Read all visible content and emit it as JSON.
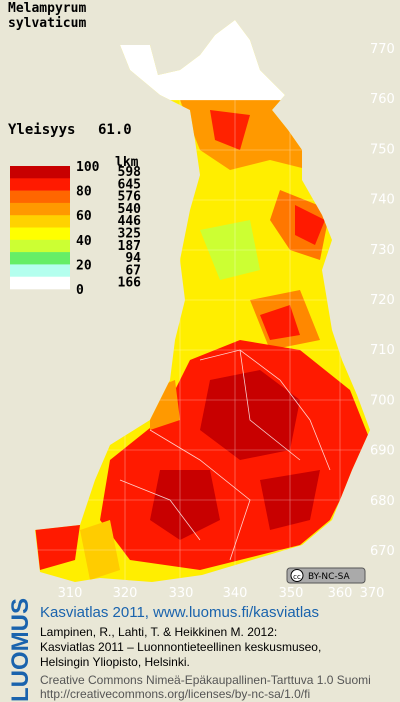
{
  "header": {
    "title_line1": "Melampyrum",
    "title_line2": "sylvaticum"
  },
  "frequency": {
    "label": "Yleisyys",
    "value": "61.0"
  },
  "legend": {
    "scale_labels": [
      100,
      80,
      60,
      40,
      20,
      0
    ],
    "count_header": "lkm",
    "classes": [
      {
        "color": "#c80000",
        "count": 598
      },
      {
        "color": "#ff1a00",
        "count": 645
      },
      {
        "color": "#ff6600",
        "count": 576
      },
      {
        "color": "#ff9900",
        "count": 540
      },
      {
        "color": "#ffd200",
        "count": 446
      },
      {
        "color": "#ffff00",
        "count": 325
      },
      {
        "color": "#ccff33",
        "count": 187
      },
      {
        "color": "#66ee66",
        "count": 94
      },
      {
        "color": "#b4ffee",
        "count": 67
      },
      {
        "color": "#ffffff",
        "count": 166
      }
    ]
  },
  "grid": {
    "y_labels": [
      770,
      760,
      750,
      740,
      730,
      720,
      710,
      700,
      690,
      680,
      670
    ],
    "x_labels": [
      310,
      320,
      330,
      340,
      350,
      360,
      370
    ]
  },
  "license_badge": "BY-NC-SA",
  "footer": {
    "logo": "LUOMUS",
    "site": "Kasviatlas 2011, www.luomus.fi/kasviatlas",
    "citation_line1": "Lampinen, R., Lahti, T. & Heikkinen M. 2012:",
    "citation_line2": "Kasviatlas 2011 – Luonnontieteellinen keskusmuseo,",
    "citation_line3": "Helsingin Yliopisto, Helsinki.",
    "license_line1": "Creative Commons Nimeä-Epäkaupallinen-Tarttuva 1.0 Suomi",
    "license_line2": "http://creativecommons.org/licenses/by-nc-sa/1.0/fi"
  }
}
